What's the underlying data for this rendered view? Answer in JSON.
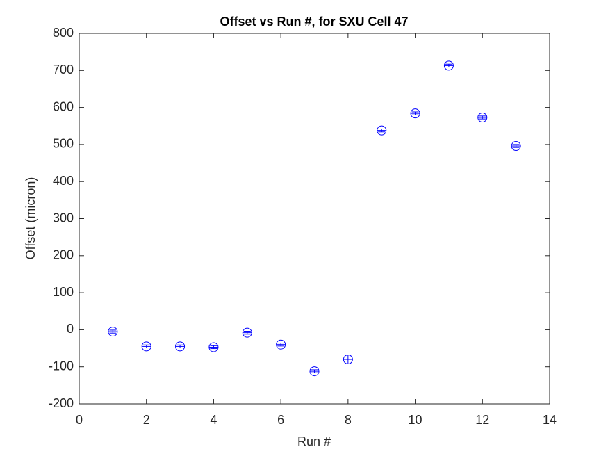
{
  "chart_data": {
    "type": "errorbar",
    "title": "Offset vs Run #, for SXU Cell 47",
    "xlabel": "Run #",
    "ylabel": "Offset (micron)",
    "x": [
      1,
      2,
      3,
      4,
      5,
      6,
      7,
      8,
      9,
      10,
      11,
      12,
      13
    ],
    "values": [
      -5,
      -45,
      -45,
      -47,
      -8,
      -40,
      -112,
      -80,
      538,
      584,
      713,
      573,
      496
    ],
    "errors": [
      4,
      4,
      4,
      4,
      4,
      4,
      4,
      12,
      4,
      4,
      4,
      4,
      4
    ],
    "color": "#0000ff",
    "xlim": [
      0,
      14
    ],
    "xticks": [
      0,
      2,
      4,
      6,
      8,
      10,
      12,
      14
    ],
    "ylim": [
      -200,
      800
    ],
    "yticks": [
      -200,
      -100,
      0,
      100,
      200,
      300,
      400,
      500,
      600,
      700,
      800
    ]
  }
}
